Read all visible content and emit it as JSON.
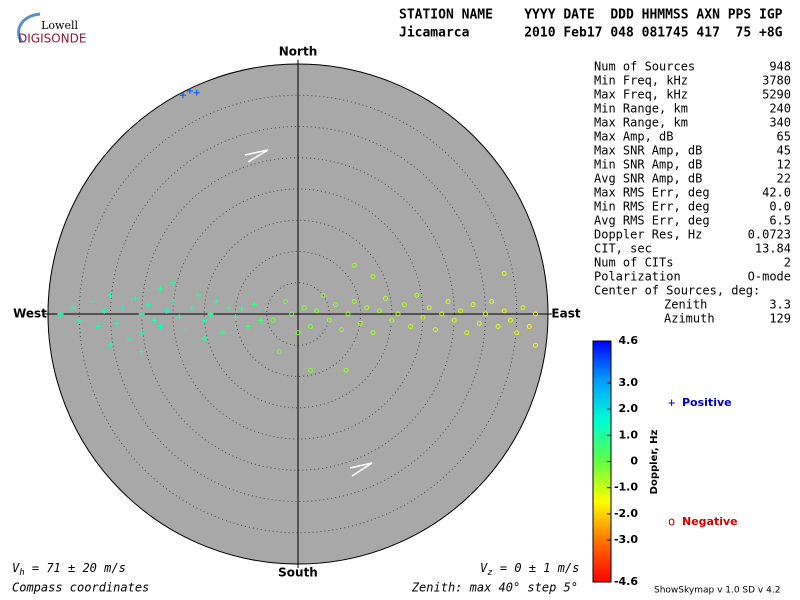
{
  "logo": {
    "top": "Lowell",
    "bottom": "DIGISONDE"
  },
  "header": {
    "line1": "STATION NAME    YYYY DATE  DDD HHMMSS AXN PPS IGP",
    "line2": "Jicamarca       2010 Feb17 048 081745 417  75 +8G"
  },
  "stats": {
    "rows": [
      [
        "Num of Sources",
        "948"
      ],
      [
        "Min Freq, kHz",
        "3780"
      ],
      [
        "Max Freq, kHz",
        "5290"
      ],
      [
        "Min Range, km",
        "240"
      ],
      [
        "Max Range, km",
        "340"
      ],
      [
        "Max Amp, dB",
        "65"
      ],
      [
        "Max SNR Amp, dB",
        "45"
      ],
      [
        "Min SNR Amp, dB",
        "12"
      ],
      [
        "Avg SNR Amp, dB",
        "22"
      ],
      [
        "Max RMS Err, deg",
        "42.0"
      ],
      [
        "Min RMS Err, deg",
        "0.0"
      ],
      [
        "Avg RMS Err, deg",
        "6.5"
      ],
      [
        "Doppler Res, Hz",
        "0.0723"
      ],
      [
        "CIT, sec",
        "13.84"
      ],
      [
        "Num of CITs",
        "2"
      ],
      [
        "Polarization",
        "O-mode"
      ]
    ],
    "center": {
      "title": "Center of Sources, deg:",
      "rows": [
        [
          "Zenith",
          "3.3"
        ],
        [
          "Azimuth",
          "129"
        ]
      ]
    }
  },
  "footer": {
    "vh": {
      "symbol": "V",
      "sub": "h",
      "text": " = 71 ± 20 m/s"
    },
    "vz": {
      "symbol": "V",
      "sub": "z",
      "text": " = 0 ± 1 m/s"
    },
    "left": "Compass coordinates",
    "zenith": "Zenith: max 40°  step 5°",
    "version": "ShowSkymap v 1.0  SD v 4.2"
  },
  "chart_data": {
    "type": "skymap",
    "directions": {
      "north": "North",
      "south": "South",
      "west": "West",
      "east": "East"
    },
    "rlim": [
      0,
      40
    ],
    "rticks": [
      5,
      10,
      15,
      20,
      25,
      30,
      35
    ],
    "colorbar_label": "Doppler, Hz",
    "clim": [
      -4.6,
      4.6
    ],
    "cticks": [
      4.6,
      {
        "value": 3,
        "label": "3.0"
      },
      {
        "value": 2,
        "label": "2.0"
      },
      {
        "value": 1,
        "label": "1.0"
      },
      0,
      {
        "value": -1,
        "label": "-1.0"
      },
      {
        "value": -2,
        "label": "-2.0"
      },
      {
        "value": -3,
        "label": "-3.0"
      },
      -4.6
    ],
    "colorscale": [
      "#ff0000",
      "#ff7000",
      "#ffff00",
      "#60ff40",
      "#00ffd0",
      "#00a0ff",
      "#0000ff"
    ],
    "series": [
      {
        "name": "Positive",
        "marker": "plus",
        "color": "#0000c0",
        "x": [
          -38,
          -36,
          -35,
          -33,
          -32,
          -31,
          -30,
          -29,
          -28,
          -27,
          -26,
          -25,
          -25,
          -24,
          -23,
          -22,
          -22,
          -21,
          -20,
          -19,
          -18,
          -17,
          -16,
          -15,
          -14,
          -13,
          -12,
          -11,
          -10,
          -9,
          -8,
          -7,
          -6,
          -30,
          -25,
          -20,
          -15,
          -18.4,
          -17.3,
          -16.2
        ],
        "y": [
          0,
          1,
          -1,
          2,
          -2,
          0.5,
          3,
          -1.5,
          1,
          -4,
          2.5,
          0,
          -3,
          1.5,
          -1,
          4,
          -2,
          0.5,
          2,
          -0.5,
          -2.5,
          1,
          3,
          -1,
          0,
          2,
          -3,
          1,
          -0.5,
          0.8,
          -2,
          1.5,
          -1,
          -5,
          -6,
          5,
          -4,
          35,
          35.7,
          35.4
        ],
        "doppler": [
          1.2,
          1.3,
          1.1,
          1.4,
          1.2,
          1.3,
          1.1,
          1.2,
          1.5,
          1.3,
          1.2,
          1.4,
          1.1,
          1.3,
          1.2,
          1.0,
          1.3,
          1.4,
          1.2,
          1.1,
          1.3,
          1.2,
          1.0,
          1.1,
          0.9,
          1.0,
          0.8,
          0.9,
          0.7,
          0.8,
          0.6,
          0.7,
          0.5,
          1.2,
          1.1,
          1.0,
          0.9,
          3.8,
          3.8,
          3.8
        ]
      },
      {
        "name": "Negative",
        "marker": "circle",
        "color": "#d00000",
        "x": [
          -4,
          -2,
          -1,
          0,
          1,
          2,
          3,
          4,
          5,
          6,
          7,
          8,
          9,
          10,
          11,
          12,
          13,
          14,
          15,
          16,
          17,
          18,
          19,
          20,
          21,
          22,
          23,
          24,
          25,
          26,
          27,
          28,
          29,
          30,
          31,
          32,
          33,
          34,
          35,
          36,
          37,
          38,
          -3,
          2,
          9,
          7.7,
          12,
          33,
          38
        ],
        "y": [
          -1,
          2,
          0,
          -3,
          1,
          -2,
          0.5,
          3,
          -1,
          1.5,
          -2.5,
          0,
          2,
          -1.5,
          1,
          -3,
          0.5,
          2.5,
          -1,
          0,
          1.5,
          -2,
          3,
          -0.5,
          1,
          -2.5,
          0,
          2,
          -1,
          0.5,
          -3,
          1.5,
          -1.5,
          0,
          2,
          -2,
          0.5,
          -1,
          -3,
          1,
          -2,
          0,
          -6,
          -9,
          7.8,
          -9,
          6,
          6.5,
          -5
        ],
        "doppler": [
          -0.2,
          -0.2,
          -0.3,
          -0.3,
          -0.3,
          -0.4,
          -0.4,
          -0.4,
          -0.5,
          -0.5,
          -0.5,
          -0.6,
          -0.6,
          -0.6,
          -0.7,
          -0.7,
          -0.7,
          -0.8,
          -0.8,
          -0.8,
          -0.9,
          -0.9,
          -0.9,
          -1.0,
          -1.0,
          -1.0,
          -1.0,
          -1.1,
          -1.1,
          -1.1,
          -1.1,
          -1.2,
          -1.2,
          -1.2,
          -1.2,
          -1.2,
          -1.3,
          -1.3,
          -1.3,
          -1.3,
          -1.4,
          -1.4,
          -0.3,
          -0.3,
          -0.6,
          -0.6,
          -0.7,
          -1.3,
          -1.4
        ]
      }
    ]
  }
}
